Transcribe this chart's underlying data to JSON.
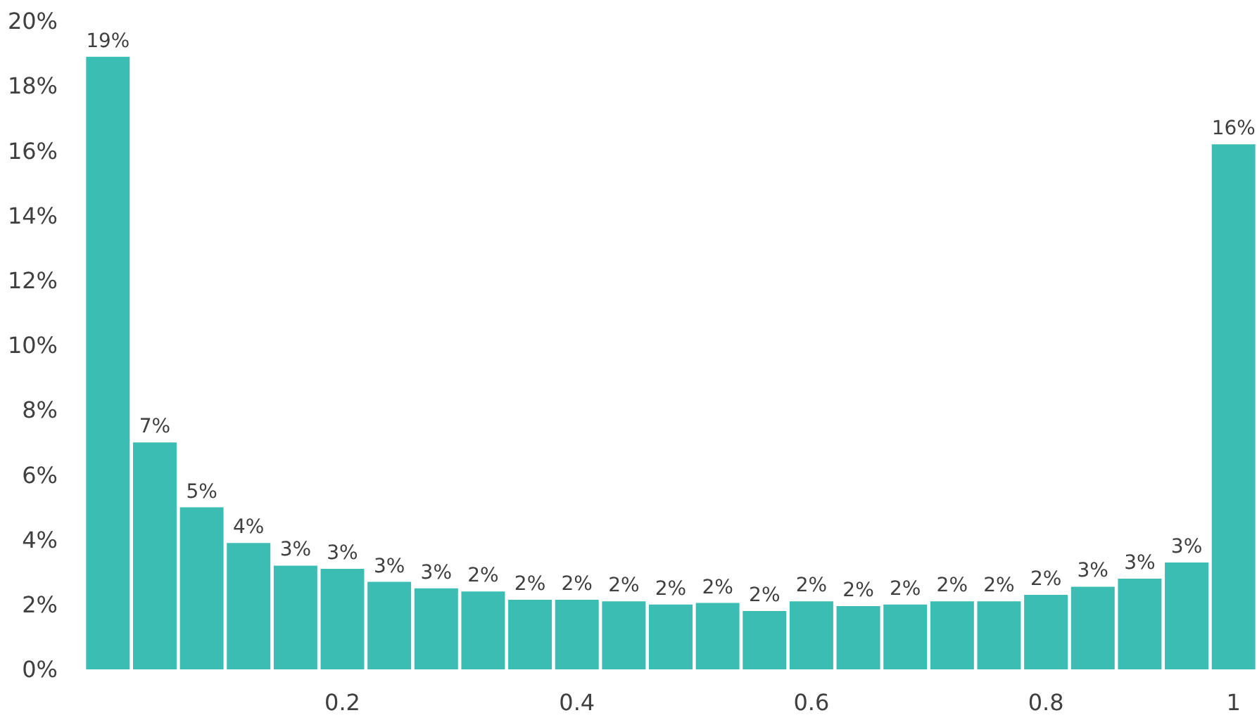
{
  "chart_data": {
    "type": "bar",
    "categories": [
      null,
      null,
      null,
      null,
      null,
      "0.2",
      null,
      null,
      null,
      null,
      "0.4",
      null,
      null,
      null,
      null,
      "0.6",
      null,
      null,
      null,
      null,
      "0.8",
      null,
      null,
      null,
      "1"
    ],
    "values": [
      18.9,
      7.0,
      5.0,
      3.9,
      3.2,
      3.1,
      2.7,
      2.5,
      2.4,
      2.15,
      2.15,
      2.1,
      2.0,
      2.05,
      1.8,
      2.1,
      1.95,
      2.0,
      2.1,
      2.1,
      2.3,
      2.55,
      2.8,
      3.3,
      16.2
    ],
    "value_labels": [
      "19%",
      "7%",
      "5%",
      "4%",
      "3%",
      "3%",
      "3%",
      "3%",
      "2%",
      "2%",
      "2%",
      "2%",
      "2%",
      "2%",
      "2%",
      "2%",
      "2%",
      "2%",
      "2%",
      "2%",
      "2%",
      "3%",
      "3%",
      "3%",
      "16%"
    ],
    "color": "#3bbdb4",
    "ylim": [
      0,
      20
    ],
    "yticks": [
      {
        "value": 0,
        "label": "0%"
      },
      {
        "value": 2,
        "label": "2%"
      },
      {
        "value": 4,
        "label": "4%"
      },
      {
        "value": 6,
        "label": "6%"
      },
      {
        "value": 8,
        "label": "8%"
      },
      {
        "value": 10,
        "label": "10%"
      },
      {
        "value": 12,
        "label": "12%"
      },
      {
        "value": 14,
        "label": "14%"
      },
      {
        "value": 16,
        "label": "16%"
      },
      {
        "value": 18,
        "label": "18%"
      },
      {
        "value": 20,
        "label": "20%"
      }
    ]
  }
}
